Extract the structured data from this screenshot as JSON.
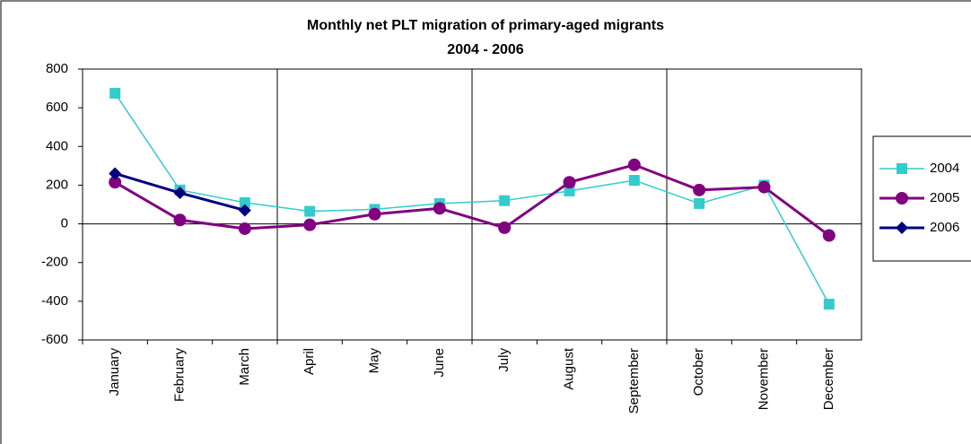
{
  "chart_data": {
    "type": "line",
    "title": "Monthly net PLT migration of primary-aged migrants",
    "subtitle": "2004 - 2006",
    "categories": [
      "January",
      "February",
      "March",
      "April",
      "May",
      "June",
      "July",
      "August",
      "September",
      "October",
      "November",
      "December"
    ],
    "series": [
      {
        "name": "2004",
        "color": "#33cccc",
        "marker": "square",
        "values": [
          675,
          175,
          110,
          65,
          75,
          105,
          120,
          170,
          225,
          105,
          200,
          -415
        ]
      },
      {
        "name": "2005",
        "color": "#800080",
        "marker": "circle",
        "values": [
          215,
          20,
          -25,
          -5,
          50,
          80,
          -20,
          215,
          305,
          175,
          190,
          -60
        ]
      },
      {
        "name": "2006",
        "color": "#000080",
        "marker": "diamond",
        "values": [
          260,
          160,
          70,
          null,
          null,
          null,
          null,
          null,
          null,
          null,
          null,
          null
        ]
      }
    ],
    "ylim": [
      -600,
      800
    ],
    "yticks": [
      -600,
      -400,
      -200,
      0,
      200,
      400,
      600,
      800
    ],
    "legend": "right"
  }
}
